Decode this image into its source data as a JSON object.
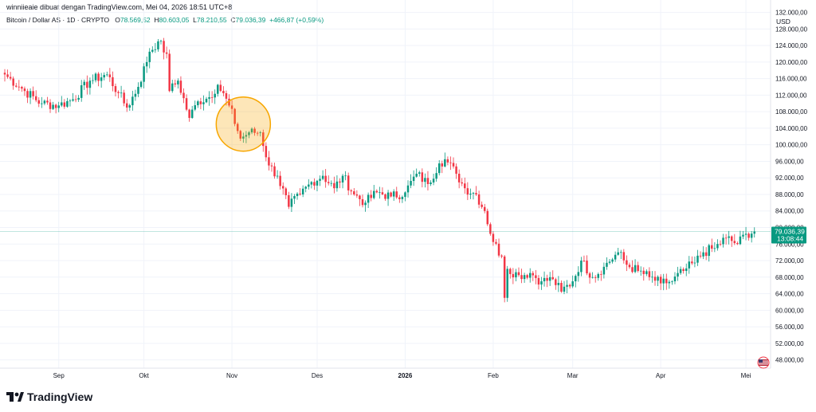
{
  "header": {
    "caption": "winniieaie dibuat dengan TradingView.com, Mei 04, 2026 18:51 UTC+8"
  },
  "legend": {
    "symbol": "Bitcoin / Dollar AS · 1D · CRYPTO",
    "o_label": "O",
    "o": "78.569,52",
    "h_label": "H",
    "h": "80.603,05",
    "l_label": "L",
    "l": "78.210,55",
    "c_label": "C",
    "c": "79.036,39",
    "change": "+466,87 (+0,59%)"
  },
  "currency": "USD",
  "last_price": {
    "value": "79.036,39",
    "countdown": "13:08:44"
  },
  "footer": {
    "brand": "TradingView"
  },
  "colors": {
    "up": "#089981",
    "down": "#F23645",
    "grid": "#F0F3FA",
    "text": "#131722",
    "highlight": "#F7A600"
  },
  "highlight": {
    "shape": "circle",
    "center_date": "2025-11-05",
    "center_price": 105000
  },
  "chart_data": {
    "type": "candlestick",
    "y_axis_ticks": [
      "132.000,00",
      "128.000,00",
      "124.000,00",
      "120.000,00",
      "116.000,00",
      "112.000,00",
      "108.000,00",
      "104.000,00",
      "100.000,00",
      "96.000,00",
      "92.000,00",
      "88.000,00",
      "84.000,00",
      "80.000,00",
      "76.000,00",
      "72.000,00",
      "68.000,00",
      "64.000,00",
      "60.000,00",
      "56.000,00",
      "52.000,00",
      "48.000,00"
    ],
    "y_range": [
      46000,
      135000
    ],
    "x_axis_ticks": [
      {
        "label": "Sep",
        "date": "2025-09-01"
      },
      {
        "label": "Okt",
        "date": "2025-10-01"
      },
      {
        "label": "Nov",
        "date": "2025-11-01"
      },
      {
        "label": "Des",
        "date": "2025-12-01"
      },
      {
        "label": "2026",
        "date": "2026-01-01"
      },
      {
        "label": "Feb",
        "date": "2026-02-01"
      },
      {
        "label": "Mar",
        "date": "2026-03-01"
      },
      {
        "label": "Apr",
        "date": "2026-04-01"
      },
      {
        "label": "Mei",
        "date": "2026-05-01"
      }
    ],
    "x_range": [
      "2025-08-13",
      "2026-05-08"
    ],
    "approx_daily_closes": [
      {
        "date": "2025-08-13",
        "close": 117000
      },
      {
        "date": "2025-08-20",
        "close": 113000
      },
      {
        "date": "2025-08-26",
        "close": 110000
      },
      {
        "date": "2025-09-01",
        "close": 109500
      },
      {
        "date": "2025-09-06",
        "close": 111000
      },
      {
        "date": "2025-09-12",
        "close": 115500
      },
      {
        "date": "2025-09-18",
        "close": 117000
      },
      {
        "date": "2025-09-22",
        "close": 112500
      },
      {
        "date": "2025-09-25",
        "close": 109000
      },
      {
        "date": "2025-09-29",
        "close": 114000
      },
      {
        "date": "2025-10-03",
        "close": 122500
      },
      {
        "date": "2025-10-06",
        "close": 125000
      },
      {
        "date": "2025-10-09",
        "close": 122000
      },
      {
        "date": "2025-10-10",
        "close": 113000
      },
      {
        "date": "2025-10-13",
        "close": 115500
      },
      {
        "date": "2025-10-17",
        "close": 106500
      },
      {
        "date": "2025-10-20",
        "close": 110500
      },
      {
        "date": "2025-10-24",
        "close": 111500
      },
      {
        "date": "2025-10-27",
        "close": 114500
      },
      {
        "date": "2025-10-31",
        "close": 109500
      },
      {
        "date": "2025-11-04",
        "close": 101500
      },
      {
        "date": "2025-11-07",
        "close": 103000
      },
      {
        "date": "2025-11-11",
        "close": 103000
      },
      {
        "date": "2025-11-14",
        "close": 95000
      },
      {
        "date": "2025-11-17",
        "close": 92500
      },
      {
        "date": "2025-11-21",
        "close": 85000
      },
      {
        "date": "2025-11-25",
        "close": 88000
      },
      {
        "date": "2025-11-29",
        "close": 91000
      },
      {
        "date": "2025-12-03",
        "close": 92500
      },
      {
        "date": "2025-12-07",
        "close": 89500
      },
      {
        "date": "2025-12-10",
        "close": 92500
      },
      {
        "date": "2025-12-14",
        "close": 88000
      },
      {
        "date": "2025-12-18",
        "close": 86000
      },
      {
        "date": "2025-12-22",
        "close": 88500
      },
      {
        "date": "2025-12-27",
        "close": 87500
      },
      {
        "date": "2026-01-01",
        "close": 88500
      },
      {
        "date": "2026-01-05",
        "close": 93000
      },
      {
        "date": "2026-01-09",
        "close": 90500
      },
      {
        "date": "2026-01-13",
        "close": 95500
      },
      {
        "date": "2026-01-15",
        "close": 96500
      },
      {
        "date": "2026-01-19",
        "close": 93000
      },
      {
        "date": "2026-01-22",
        "close": 89500
      },
      {
        "date": "2026-01-26",
        "close": 88000
      },
      {
        "date": "2026-01-29",
        "close": 84000
      },
      {
        "date": "2026-02-01",
        "close": 76500
      },
      {
        "date": "2026-02-04",
        "close": 73000
      },
      {
        "date": "2026-02-05",
        "close": 63000
      },
      {
        "date": "2026-02-06",
        "close": 70000
      },
      {
        "date": "2026-02-10",
        "close": 68500
      },
      {
        "date": "2026-02-14",
        "close": 69000
      },
      {
        "date": "2026-02-18",
        "close": 67000
      },
      {
        "date": "2026-02-22",
        "close": 67500
      },
      {
        "date": "2026-02-25",
        "close": 64500
      },
      {
        "date": "2026-03-01",
        "close": 67000
      },
      {
        "date": "2026-03-04",
        "close": 72000
      },
      {
        "date": "2026-03-08",
        "close": 68000
      },
      {
        "date": "2026-03-12",
        "close": 70500
      },
      {
        "date": "2026-03-17",
        "close": 74000
      },
      {
        "date": "2026-03-20",
        "close": 71000
      },
      {
        "date": "2026-03-24",
        "close": 69500
      },
      {
        "date": "2026-03-28",
        "close": 68000
      },
      {
        "date": "2026-04-01",
        "close": 66500
      },
      {
        "date": "2026-04-05",
        "close": 67000
      },
      {
        "date": "2026-04-09",
        "close": 69500
      },
      {
        "date": "2026-04-13",
        "close": 71500
      },
      {
        "date": "2026-04-16",
        "close": 74000
      },
      {
        "date": "2026-04-20",
        "close": 75000
      },
      {
        "date": "2026-04-24",
        "close": 77500
      },
      {
        "date": "2026-04-28",
        "close": 76000
      },
      {
        "date": "2026-05-01",
        "close": 78500
      },
      {
        "date": "2026-05-04",
        "close": 79036.39
      }
    ]
  }
}
